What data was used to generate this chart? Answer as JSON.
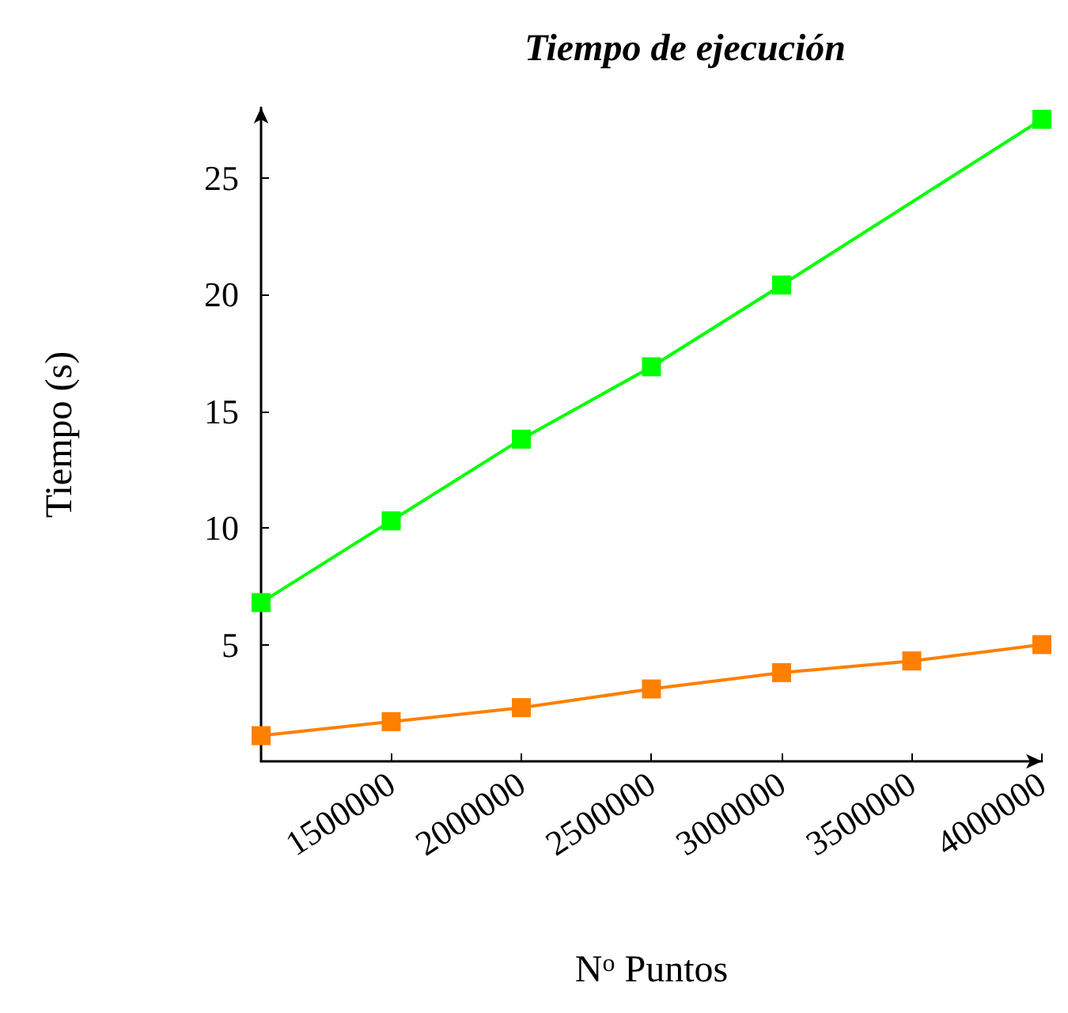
{
  "chart_data": {
    "type": "line",
    "title": "Tiempo de ejecución",
    "xlabel": "N$^{o}$ Puntos",
    "ylabel": "Tiempo (s)",
    "x": [
      1000000,
      1500000,
      2000000,
      2500000,
      3000000,
      3500000,
      4000000
    ],
    "series": [
      {
        "color": "#ff7f00",
        "values": [
          1.1,
          1.7,
          2.3,
          3.1,
          3.8,
          4.3,
          5.0
        ]
      },
      {
        "color": "#00ff00",
        "values": [
          6.8,
          10.3,
          13.8,
          16.9,
          20.4,
          null,
          27.5
        ]
      }
    ],
    "xlim": [
      1000000,
      4000000
    ],
    "xticks": [
      1500000,
      2000000,
      2500000,
      3000000,
      3500000,
      4000000
    ],
    "ylim": [
      0,
      28
    ],
    "yticks": [
      5,
      10,
      15,
      20,
      25
    ],
    "grid": false,
    "marker": "square",
    "line_style": "solid"
  }
}
